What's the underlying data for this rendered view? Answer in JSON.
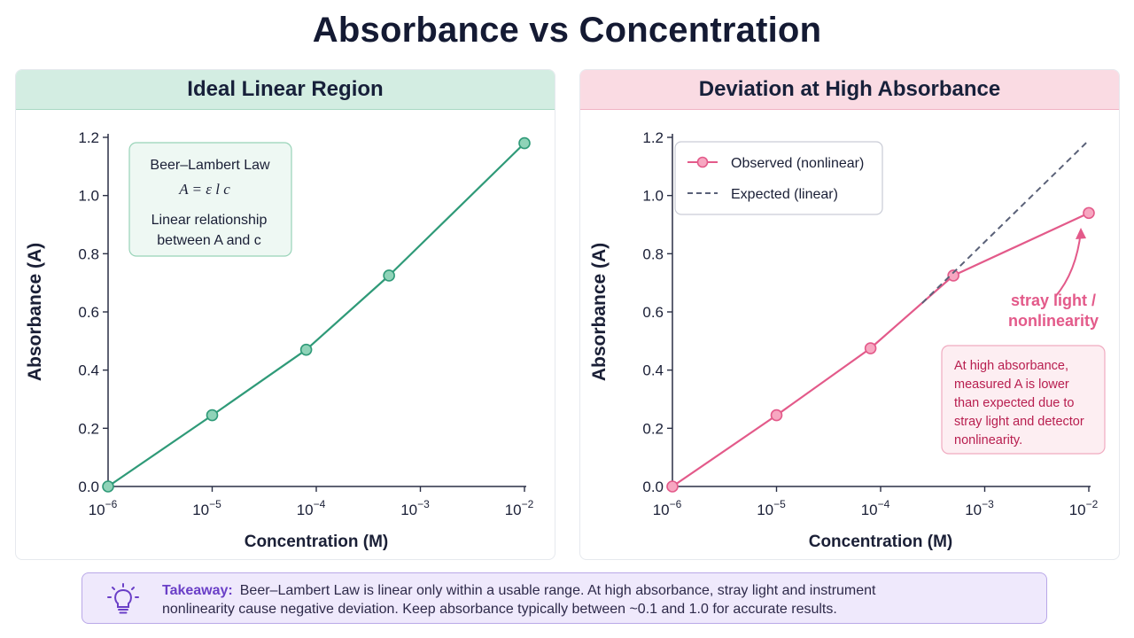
{
  "title": "Absorbance vs Concentration",
  "panels": {
    "left": {
      "title": "Ideal Linear Region",
      "note": {
        "heading": "Beer–Lambert Law",
        "formula": "A = ε l c",
        "line1": "Linear relationship",
        "line2": "between A and c"
      }
    },
    "right": {
      "title": "Deviation at High Absorbance",
      "annotation": [
        "stray light /",
        "nonlinearity"
      ],
      "note": [
        "At high absorbance,",
        "measured A is lower",
        "than expected due to",
        "stray light and detector",
        "nonlinearity."
      ]
    }
  },
  "takeaway": {
    "label": "Takeaway:",
    "line1": "Beer–Lambert Law is linear only within a usable range.  At high absorbance, stray light and instrument",
    "line2": "nonlinearity cause negative deviation. Keep absorbance typically between ~0.1 and 1.0 for accurate results.",
    "icon": "lightbulb-icon"
  },
  "chart_data": [
    {
      "type": "line",
      "title": "Ideal Linear Region",
      "xlabel": "Concentration (M)",
      "ylabel": "Absorbance (A)",
      "xscale": "log",
      "xlim": [
        1e-06,
        0.01
      ],
      "ylim": [
        0,
        1.2
      ],
      "xticks": [
        {
          "base": "10",
          "exp": "−6"
        },
        {
          "base": "10",
          "exp": "−5"
        },
        {
          "base": "10",
          "exp": "−4"
        },
        {
          "base": "10",
          "exp": "−3"
        },
        {
          "base": "10",
          "exp": "−2"
        }
      ],
      "yticks": [
        "0.0",
        "0.2",
        "0.4",
        "0.6",
        "0.8",
        "1.0",
        "1.2"
      ],
      "grid": false,
      "series": [
        {
          "color": "#2f9a78",
          "x": [
            1e-06,
            1e-05,
            8e-05,
            0.0005,
            0.01
          ],
          "y": [
            0.0,
            0.245,
            0.47,
            0.725,
            1.18
          ]
        }
      ]
    },
    {
      "type": "line",
      "title": "Deviation at High Absorbance",
      "xlabel": "Concentration (M)",
      "ylabel": "Absorbance (A)",
      "xscale": "log",
      "xlim": [
        1e-06,
        0.01
      ],
      "ylim": [
        0,
        1.2
      ],
      "xticks": [
        {
          "base": "10",
          "exp": "−6"
        },
        {
          "base": "10",
          "exp": "−5"
        },
        {
          "base": "10",
          "exp": "−4"
        },
        {
          "base": "10",
          "exp": "−3"
        },
        {
          "base": "10",
          "exp": "−2"
        }
      ],
      "yticks": [
        "0.0",
        "0.2",
        "0.4",
        "0.6",
        "0.8",
        "1.0",
        "1.2"
      ],
      "grid": false,
      "legend": "top-left",
      "series": [
        {
          "name": "Observed (nonlinear)",
          "color": "#e35a8a",
          "style": "solid-markers",
          "x": [
            1e-06,
            1e-05,
            8e-05,
            0.0005,
            0.01
          ],
          "y": [
            0.0,
            0.245,
            0.475,
            0.725,
            0.94
          ]
        },
        {
          "name": "Expected (linear)",
          "color": "#5a6178",
          "style": "dashed",
          "x": [
            0.00025,
            0.01
          ],
          "y": [
            0.63,
            1.19
          ]
        }
      ]
    }
  ]
}
